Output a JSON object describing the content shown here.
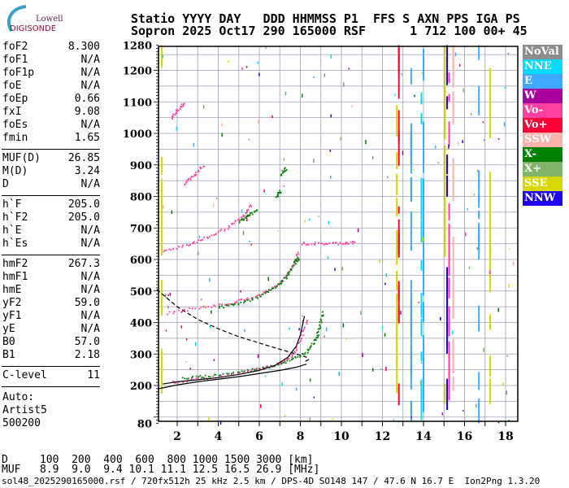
{
  "logo": {
    "line1": "Lowell",
    "line2": "DIGISONDE"
  },
  "header": {
    "line1": "Statio YYYY DAY   DDD HHMMSS P1  FFS S AXN PPS IGA PS",
    "line2": "Sopron 2025 Oct17 290 165000 RSF      1 712 100 00+ 45"
  },
  "params": {
    "group1": [
      {
        "label": "foF2",
        "value": "8.300"
      },
      {
        "label": "foF1",
        "value": "N/A"
      },
      {
        "label": "foF1p",
        "value": "N/A"
      },
      {
        "label": "foE",
        "value": "N/A"
      },
      {
        "label": "foEp",
        "value": "0.66"
      },
      {
        "label": "fxI",
        "value": "9.08"
      },
      {
        "label": "foEs",
        "value": "N/A"
      },
      {
        "label": "fmin",
        "value": "1.65"
      }
    ],
    "group2": [
      {
        "label": "MUF(D)",
        "value": "26.85"
      },
      {
        "label": "M(D)",
        "value": "3.24"
      },
      {
        "label": "D",
        "value": "N/A"
      }
    ],
    "group3": [
      {
        "label": "h`F",
        "value": "205.0"
      },
      {
        "label": "h`F2",
        "value": "205.0"
      },
      {
        "label": "h`E",
        "value": "N/A"
      },
      {
        "label": "h`Es",
        "value": "N/A"
      }
    ],
    "group4": [
      {
        "label": "hmF2",
        "value": "267.3"
      },
      {
        "label": "hmF1",
        "value": "N/A"
      },
      {
        "label": "hmE",
        "value": "N/A"
      },
      {
        "label": "yF2",
        "value": "59.0"
      },
      {
        "label": "yF1",
        "value": "N/A"
      },
      {
        "label": "yE",
        "value": "N/A"
      },
      {
        "label": "B0",
        "value": "57.0"
      },
      {
        "label": "B1",
        "value": "2.18"
      }
    ],
    "group5": [
      {
        "label": "C-level",
        "value": "11"
      }
    ],
    "auto": {
      "line1": "Auto:",
      "line2": "Artist5",
      "line3": "500200"
    }
  },
  "legend": [
    {
      "label": "NoVal",
      "color": "#8c8c8c"
    },
    {
      "label": "NNE",
      "color": "#00dcff"
    },
    {
      "label": "E",
      "color": "#40a8ff"
    },
    {
      "label": "W",
      "color": "#a8009c"
    },
    {
      "label": "Vo-",
      "color": "#ff40a0"
    },
    {
      "label": "Vo+",
      "color": "#ff0038"
    },
    {
      "label": "SSW",
      "color": "#f8b4ac"
    },
    {
      "label": "X-",
      "color": "#008000"
    },
    {
      "label": "X+",
      "color": "#80b468"
    },
    {
      "label": "SSE",
      "color": "#d8d800"
    },
    {
      "label": "NNW",
      "color": "#2000f0"
    }
  ],
  "muf_table": {
    "d_row": "D     100  200  400  600  800 1000 1500 3000 [km]",
    "muf_row": "MUF   8.9  9.0  9.4 10.1 11.1 12.5 16.5 26.9 [MHz]"
  },
  "footer": "sol48_2025290165000.rsf / 720fx512h 25 kHz 2.5 km / DPS-4D SO148 147 / 47.6 N 16.7 E  Ion2Png 1.3.20",
  "chart_data": {
    "type": "scatter",
    "xlim": [
      1.1,
      18.6
    ],
    "ylim": [
      80,
      1280
    ],
    "xticks": [
      "2",
      "4",
      "6",
      "8",
      "10",
      "12",
      "14",
      "16",
      "18"
    ],
    "yticks": [
      "80",
      "200",
      "300",
      "400",
      "500",
      "600",
      "700",
      "800",
      "900",
      "1000",
      "1100",
      "1200",
      "1280"
    ],
    "grid": true,
    "legend_placement": "right",
    "series": [
      {
        "name": "Vo-",
        "color": "#ff40a0",
        "traces": [
          [
            [
              1.8,
              212
            ],
            [
              3,
              222
            ],
            [
              4.5,
              235
            ],
            [
              6,
              255
            ],
            [
              7,
              272
            ],
            [
              7.6,
              300
            ],
            [
              8.0,
              350
            ],
            [
              8.3,
              410
            ]
          ],
          [
            [
              1.5,
              432
            ],
            [
              3,
              448
            ],
            [
              4.5,
              462
            ],
            [
              5.5,
              478
            ],
            [
              6.5,
              505
            ],
            [
              7.2,
              540
            ],
            [
              7.6,
              580
            ],
            [
              7.9,
              625
            ]
          ],
          [
            [
              1.3,
              628
            ],
            [
              2.5,
              650
            ],
            [
              3.5,
              672
            ],
            [
              4.5,
              705
            ],
            [
              5.2,
              740
            ],
            [
              5.6,
              775
            ]
          ],
          [
            [
              2.3,
              842
            ],
            [
              2.8,
              870
            ],
            [
              3.3,
              902
            ]
          ],
          [
            [
              1.7,
              1050
            ],
            [
              2.0,
              1075
            ],
            [
              2.3,
              1100
            ]
          ],
          [
            [
              8.0,
              652
            ],
            [
              9,
              652
            ],
            [
              10,
              654
            ],
            [
              10.7,
              656
            ]
          ]
        ]
      },
      {
        "name": "X-",
        "color": "#008000",
        "traces": [
          [
            [
              2.2,
              225
            ],
            [
              3.5,
              232
            ],
            [
              5,
              245
            ],
            [
              6.5,
              262
            ],
            [
              7.5,
              282
            ],
            [
              8.3,
              310
            ],
            [
              8.7,
              345
            ],
            [
              8.9,
              380
            ],
            [
              9.1,
              440
            ]
          ],
          [
            [
              4,
              450
            ],
            [
              5,
              462
            ],
            [
              6,
              485
            ],
            [
              6.8,
              515
            ],
            [
              7.3,
              548
            ],
            [
              7.7,
              590
            ],
            [
              7.9,
              610
            ]
          ],
          [
            [
              5.0,
              722
            ],
            [
              5.4,
              740
            ],
            [
              5.9,
              762
            ]
          ],
          [
            [
              7.0,
              870
            ],
            [
              7.3,
              895
            ]
          ],
          [
            [
              6.8,
              800
            ],
            [
              7.0,
              820
            ]
          ]
        ]
      }
    ],
    "profile_curves": [
      {
        "style": "dashed",
        "points": [
          [
            1.0,
            505
          ],
          [
            2,
            450
          ],
          [
            3,
            410
          ],
          [
            4,
            380
          ],
          [
            5,
            355
          ],
          [
            6,
            335
          ],
          [
            7,
            315
          ],
          [
            7.8,
            300
          ],
          [
            8.3,
            290
          ],
          [
            8.4,
            282
          ],
          [
            8.2,
            275
          ]
        ]
      },
      {
        "style": "solid",
        "points": [
          [
            1.1,
            190
          ],
          [
            2,
            202
          ],
          [
            3,
            212
          ],
          [
            4,
            220
          ],
          [
            5,
            228
          ],
          [
            6,
            238
          ],
          [
            7,
            248
          ],
          [
            7.8,
            258
          ],
          [
            8.3,
            268
          ]
        ]
      },
      {
        "style": "solid",
        "points": [
          [
            1.3,
            205
          ],
          [
            2,
            212
          ],
          [
            3,
            218
          ],
          [
            4,
            225
          ],
          [
            5,
            235
          ],
          [
            6,
            248
          ],
          [
            6.8,
            265
          ],
          [
            7.4,
            290
          ],
          [
            7.8,
            325
          ],
          [
            8.0,
            360
          ],
          [
            8.2,
            420
          ]
        ]
      }
    ],
    "interference": [
      {
        "f": 1.25,
        "color": "#d8d800"
      },
      {
        "f": 12.7,
        "color": "#d8d800"
      },
      {
        "f": 12.8,
        "color": "#ff0038"
      },
      {
        "f": 13.4,
        "color": "#40a8ff"
      },
      {
        "f": 13.9,
        "color": "#00dcff"
      },
      {
        "f": 14.0,
        "color": "#40a8ff"
      },
      {
        "f": 15.05,
        "color": "#d8d800"
      },
      {
        "f": 15.15,
        "color": "#2000f0"
      },
      {
        "f": 15.25,
        "color": "#ff40a0"
      },
      {
        "f": 15.45,
        "color": "#f8b4ac"
      },
      {
        "f": 17.25,
        "color": "#d8d800"
      },
      {
        "f": 16.7,
        "color": "#40a8ff"
      }
    ]
  }
}
